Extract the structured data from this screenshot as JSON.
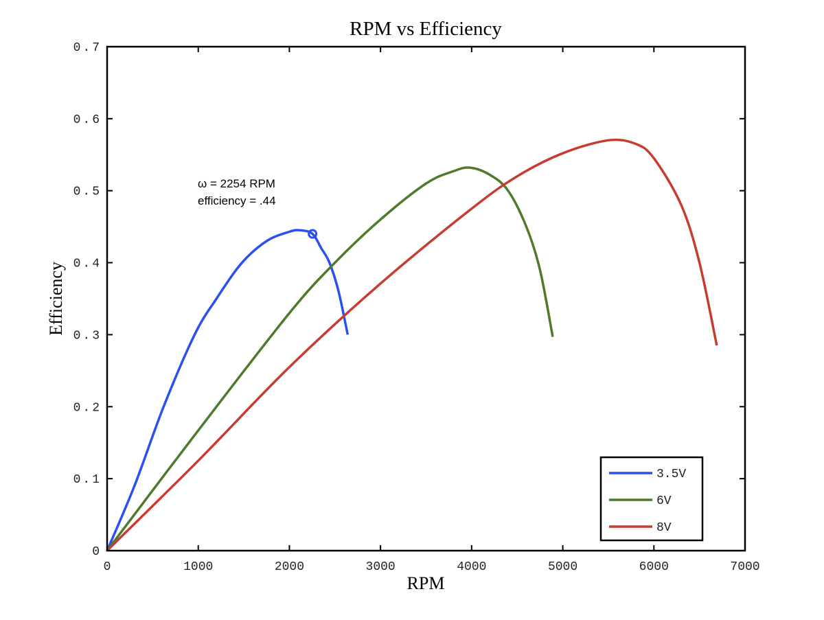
{
  "chart_data": {
    "type": "line",
    "title": "RPM vs Efficiency",
    "xlabel": "RPM",
    "ylabel": "Efficiency",
    "xlim": [
      0,
      7000
    ],
    "ylim": [
      0,
      0.7
    ],
    "xticks": [
      0,
      1000,
      2000,
      3000,
      4000,
      5000,
      6000,
      7000
    ],
    "xtick_labels": [
      "0",
      "1000",
      "2000",
      "3000",
      "4000",
      "5000",
      "6000",
      "7000"
    ],
    "yticks": [
      0,
      0.1,
      0.2,
      0.3,
      0.4,
      0.5,
      0.6,
      0.7
    ],
    "ytick_labels": [
      "0",
      "0.1",
      "0.2",
      "0.3",
      "0.4",
      "0.5",
      "0.6",
      "0.7"
    ],
    "grid": false,
    "legend_position": "bottom-right",
    "series": [
      {
        "name": "3.5V",
        "color": "#2b50f0",
        "points": [
          [
            0,
            0
          ],
          [
            300,
            0.09
          ],
          [
            620,
            0.2
          ],
          [
            960,
            0.3
          ],
          [
            1200,
            0.35
          ],
          [
            1480,
            0.4
          ],
          [
            1750,
            0.43
          ],
          [
            2000,
            0.443
          ],
          [
            2120,
            0.445
          ],
          [
            2254,
            0.44
          ],
          [
            2350,
            0.42
          ],
          [
            2440,
            0.4
          ],
          [
            2540,
            0.36
          ],
          [
            2640,
            0.3
          ]
        ]
      },
      {
        "name": "6V",
        "color": "#4f7a2c",
        "points": [
          [
            0,
            0
          ],
          [
            1000,
            0.167
          ],
          [
            2000,
            0.33
          ],
          [
            2500,
            0.4
          ],
          [
            3000,
            0.46
          ],
          [
            3500,
            0.51
          ],
          [
            3800,
            0.527
          ],
          [
            3980,
            0.532
          ],
          [
            4200,
            0.522
          ],
          [
            4400,
            0.5
          ],
          [
            4600,
            0.45
          ],
          [
            4750,
            0.39
          ],
          [
            4890,
            0.297
          ]
        ]
      },
      {
        "name": "8V",
        "color": "#c83b30",
        "points": [
          [
            0,
            0
          ],
          [
            1000,
            0.125
          ],
          [
            2000,
            0.255
          ],
          [
            3000,
            0.371
          ],
          [
            4000,
            0.475
          ],
          [
            4500,
            0.52
          ],
          [
            5000,
            0.552
          ],
          [
            5500,
            0.57
          ],
          [
            5800,
            0.565
          ],
          [
            6000,
            0.545
          ],
          [
            6300,
            0.48
          ],
          [
            6500,
            0.4
          ],
          [
            6690,
            0.285
          ]
        ]
      }
    ],
    "annotation": {
      "marker_point": [
        2254,
        0.44
      ],
      "lines": [
        "ω = 2254 RPM",
        "efficiency = .44"
      ]
    }
  }
}
